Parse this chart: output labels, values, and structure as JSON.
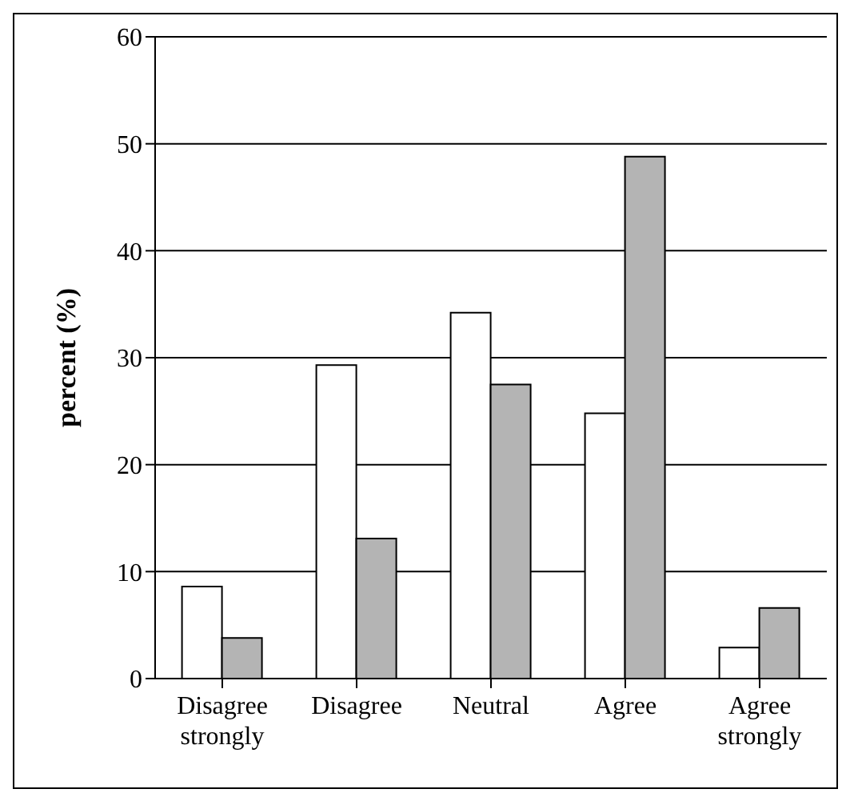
{
  "chart_data": {
    "type": "bar",
    "ylabel": "percent (%)",
    "categories": [
      "Disagree strongly",
      "Disagree",
      "Neutral",
      "Agree",
      "Agree strongly"
    ],
    "series": [
      {
        "color": "#ffffff",
        "values": [
          8.6,
          29.3,
          34.2,
          24.8,
          2.9
        ]
      },
      {
        "color": "#b4b4b4",
        "values": [
          3.8,
          13.1,
          27.5,
          48.8,
          6.6
        ]
      }
    ],
    "ylim": [
      0,
      60
    ],
    "yticks": [
      0,
      10,
      20,
      30,
      40,
      50,
      60
    ],
    "grid": "y",
    "legend": false
  }
}
